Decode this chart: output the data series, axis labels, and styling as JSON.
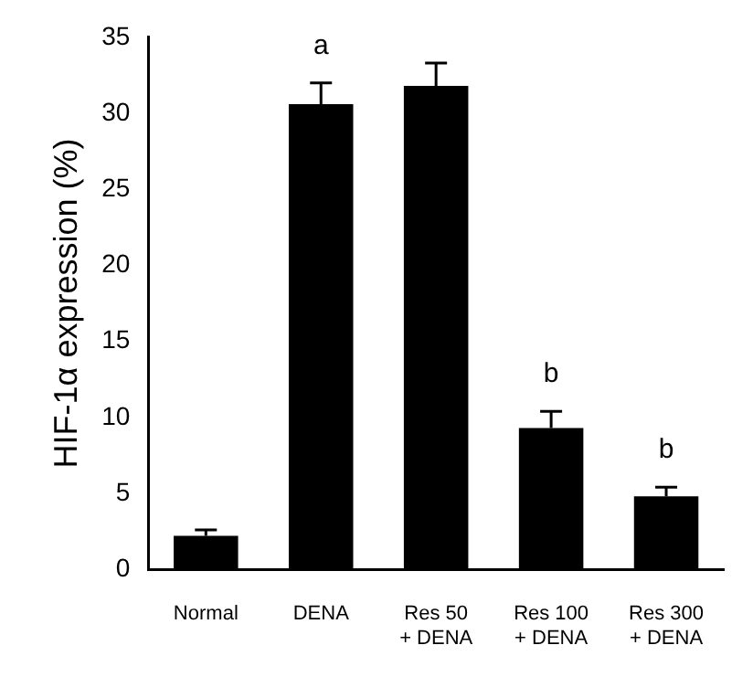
{
  "chart_data": {
    "type": "bar",
    "ylabel": "HIF-1α expression (%)",
    "categories": [
      "Normal",
      "DENA",
      "Res 50\n+ DENA",
      "Res 100\n+ DENA",
      "Res 300\n+ DENA"
    ],
    "values": [
      2.2,
      30.6,
      31.8,
      9.3,
      4.8
    ],
    "errors": [
      [
        2.2,
        2.6
      ],
      [
        30.6,
        32.0
      ],
      [
        31.8,
        33.3
      ],
      [
        9.3,
        10.4
      ],
      [
        4.8,
        5.4
      ]
    ],
    "color": "#000000",
    "ylim": [
      0,
      35
    ],
    "yticks": [
      0,
      5,
      10,
      15,
      20,
      25,
      30,
      35
    ],
    "grid": false,
    "legend": false,
    "annotations": [
      {
        "text": "a",
        "x": "DENA",
        "y": 32.0
      },
      {
        "text": "b",
        "x": "Res 100\n+ DENA",
        "y": 10.4
      },
      {
        "text": "b",
        "x": "Res 300\n+ DENA",
        "y": 5.4
      }
    ]
  }
}
